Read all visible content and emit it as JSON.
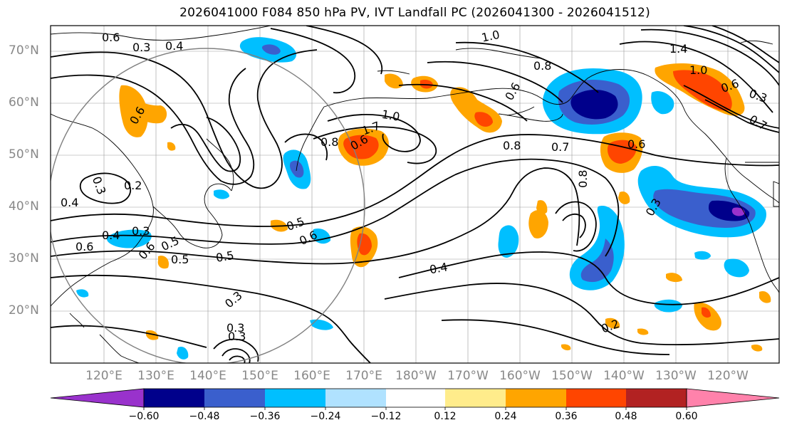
{
  "title": "2026041000 F084 850 hPa PV, IVT Landfall PC (2026041300 - 2026041512)",
  "map": {
    "lat_labels": [
      "70°N",
      "60°N",
      "50°N",
      "40°N",
      "30°N",
      "20°N"
    ],
    "lon_labels": [
      "120°E",
      "130°E",
      "140°E",
      "150°E",
      "160°E",
      "170°E",
      "180°W",
      "170°W",
      "160°W",
      "150°W",
      "140°W",
      "130°W",
      "120°W"
    ],
    "contour_labels": [
      "0.6",
      "0.3",
      "0.4",
      "1.0",
      "1.4",
      "1.0",
      "0.8",
      "0.6",
      "0.7",
      "0.3",
      "1.0",
      "1.7",
      "0.8",
      "0.6",
      "0.8",
      "0.7",
      "0.6",
      "0.2",
      "0.4",
      "0.3",
      "0.4",
      "0.3",
      "0.6",
      "0.5",
      "0.5",
      "0.5",
      "0.6",
      "0.3",
      "0.4",
      "0.3",
      "0.2",
      "0.8",
      "0.3",
      "0.3",
      "0.6",
      "0.5",
      "0.6",
      "0.6"
    ],
    "colors": {
      "contour": "#000000",
      "gridline": "#999999",
      "coastline": "#000000",
      "circle": "#808080"
    }
  },
  "colorbar": {
    "tick_labels": [
      "−0.60",
      "−0.48",
      "−0.36",
      "−0.24",
      "−0.12",
      "0.12",
      "0.24",
      "0.36",
      "0.48",
      "0.60"
    ],
    "bins": [
      {
        "color": "#9932CC"
      },
      {
        "color": "#00008B"
      },
      {
        "color": "#3A5FCD"
      },
      {
        "color": "#00BFFF"
      },
      {
        "color": "#B0E2FF"
      },
      {
        "color": "#FFFFFF"
      },
      {
        "color": "#FFEC8B"
      },
      {
        "color": "#FFA500"
      },
      {
        "color": "#FF4500"
      },
      {
        "color": "#B22222"
      },
      {
        "color": "#FF82AB"
      }
    ]
  }
}
